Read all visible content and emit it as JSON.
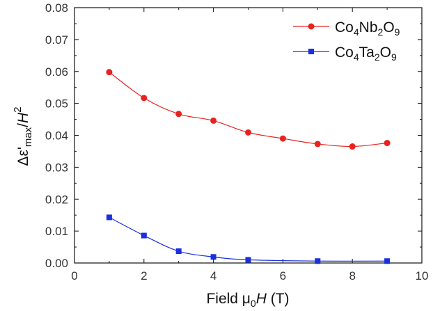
{
  "chart_data": {
    "type": "scatter",
    "xlabel": {
      "main": "Field μ",
      "sub": "0",
      "italic": "H",
      "unit": " (T)"
    },
    "ylabel": {
      "delta": "Δε'",
      "sub": "max",
      "mid": "/",
      "italic": "H",
      "sup": "2"
    },
    "xlim": [
      0,
      10
    ],
    "ylim": [
      0,
      0.08
    ],
    "xticks": [
      "0",
      "2",
      "4",
      "6",
      "8",
      "10"
    ],
    "yticks": [
      "0.00",
      "0.01",
      "0.02",
      "0.03",
      "0.04",
      "0.05",
      "0.06",
      "0.07",
      "0.08"
    ],
    "legend_position": "top-right",
    "series": [
      {
        "name": "Co4Nb2O9",
        "label_parts": [
          "Co",
          "4",
          "Nb",
          "2",
          "O",
          "9"
        ],
        "marker": "circle",
        "color": "#e8231f",
        "x": [
          1,
          2,
          3,
          4,
          5,
          6,
          7,
          8,
          9
        ],
        "y": [
          0.0598,
          0.0517,
          0.0467,
          0.0446,
          0.0409,
          0.039,
          0.0373,
          0.0365,
          0.0376
        ]
      },
      {
        "name": "Co4Ta2O9",
        "label_parts": [
          "Co",
          "4",
          "Ta",
          "2",
          "O",
          "9"
        ],
        "marker": "square",
        "color": "#1a2fe0",
        "x": [
          1,
          2,
          3,
          4,
          5,
          6,
          7,
          8,
          9
        ],
        "y": [
          0.0143,
          0.0086,
          0.0037,
          0.0019,
          0.001,
          null,
          0.0006,
          null,
          0.0006
        ]
      }
    ]
  }
}
